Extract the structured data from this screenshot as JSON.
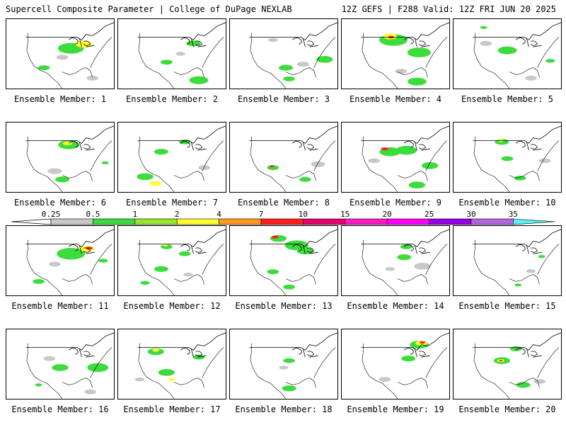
{
  "header": {
    "left": "Supercell Composite Parameter | College of DuPage NEXLAB",
    "right": "12Z GEFS | F288 Valid: 12Z FRI JUN 20 2025"
  },
  "colorbar": {
    "labels": [
      "0.25",
      "0.5",
      "1",
      "2",
      "4",
      "7",
      "10",
      "15",
      "20",
      "25",
      "30",
      "35"
    ],
    "colors": [
      "#c8c8c8",
      "#3ddc3d",
      "#96e632",
      "#ffff30",
      "#ff9a1e",
      "#ff1e1e",
      "#e6006e",
      "#ff19c8",
      "#ff00ff",
      "#9600e6",
      "#b464dc",
      "#5ef0f0"
    ]
  },
  "members": [
    {
      "label": "Ensemble Member: 1",
      "blobs": [
        [
          0.6,
          0.42,
          0.22,
          "g"
        ],
        [
          0.72,
          0.36,
          0.14,
          "y"
        ],
        [
          0.35,
          0.7,
          0.1,
          "g"
        ],
        [
          0.8,
          0.85,
          0.1,
          "s"
        ],
        [
          0.52,
          0.55,
          0.1,
          "s"
        ]
      ]
    },
    {
      "label": "Ensemble Member: 2",
      "blobs": [
        [
          0.7,
          0.35,
          0.12,
          "g"
        ],
        [
          0.45,
          0.62,
          0.1,
          "g"
        ],
        [
          0.75,
          0.88,
          0.16,
          "g"
        ],
        [
          0.58,
          0.5,
          0.08,
          "s"
        ]
      ]
    },
    {
      "label": "Ensemble Member: 3",
      "blobs": [
        [
          0.88,
          0.58,
          0.14,
          "g"
        ],
        [
          0.52,
          0.7,
          0.12,
          "g"
        ],
        [
          0.55,
          0.86,
          0.1,
          "g"
        ],
        [
          0.4,
          0.3,
          0.08,
          "s"
        ],
        [
          0.68,
          0.65,
          0.1,
          "s"
        ]
      ]
    },
    {
      "label": "Ensemble Member: 4",
      "blobs": [
        [
          0.48,
          0.3,
          0.24,
          "g"
        ],
        [
          0.45,
          0.25,
          0.12,
          "y"
        ],
        [
          0.46,
          0.26,
          0.05,
          "r"
        ],
        [
          0.72,
          0.48,
          0.2,
          "g"
        ],
        [
          0.7,
          0.9,
          0.16,
          "g"
        ],
        [
          0.55,
          0.75,
          0.1,
          "s"
        ]
      ]
    },
    {
      "label": "Ensemble Member: 5",
      "blobs": [
        [
          0.5,
          0.45,
          0.16,
          "g"
        ],
        [
          0.9,
          0.6,
          0.08,
          "g"
        ],
        [
          0.3,
          0.35,
          0.1,
          "s"
        ],
        [
          0.72,
          0.85,
          0.1,
          "s"
        ],
        [
          0.28,
          0.12,
          0.06,
          "g"
        ]
      ]
    },
    {
      "label": "Ensemble Member: 6",
      "blobs": [
        [
          0.58,
          0.32,
          0.18,
          "g"
        ],
        [
          0.57,
          0.3,
          0.08,
          "y"
        ],
        [
          0.92,
          0.58,
          0.06,
          "g"
        ],
        [
          0.52,
          0.82,
          0.12,
          "g"
        ],
        [
          0.45,
          0.7,
          0.12,
          "s"
        ]
      ]
    },
    {
      "label": "Ensemble Member: 7",
      "blobs": [
        [
          0.4,
          0.42,
          0.12,
          "g"
        ],
        [
          0.62,
          0.28,
          0.1,
          "g"
        ],
        [
          0.25,
          0.78,
          0.14,
          "g"
        ],
        [
          0.35,
          0.88,
          0.1,
          "y"
        ],
        [
          0.8,
          0.65,
          0.1,
          "s"
        ]
      ]
    },
    {
      "label": "Ensemble Member: 8",
      "blobs": [
        [
          0.4,
          0.65,
          0.1,
          "g"
        ],
        [
          0.39,
          0.63,
          0.04,
          "r"
        ],
        [
          0.82,
          0.6,
          0.12,
          "s"
        ],
        [
          0.7,
          0.82,
          0.1,
          "g"
        ]
      ]
    },
    {
      "label": "Ensemble Member: 9",
      "blobs": [
        [
          0.45,
          0.42,
          0.18,
          "g"
        ],
        [
          0.4,
          0.38,
          0.06,
          "r"
        ],
        [
          0.6,
          0.4,
          0.18,
          "g"
        ],
        [
          0.82,
          0.62,
          0.14,
          "g"
        ],
        [
          0.7,
          0.9,
          0.14,
          "g"
        ],
        [
          0.3,
          0.55,
          0.1,
          "s"
        ]
      ]
    },
    {
      "label": "Ensemble Member: 10",
      "blobs": [
        [
          0.45,
          0.28,
          0.12,
          "g"
        ],
        [
          0.44,
          0.26,
          0.05,
          "y"
        ],
        [
          0.5,
          0.52,
          0.1,
          "g"
        ],
        [
          0.62,
          0.8,
          0.1,
          "g"
        ],
        [
          0.85,
          0.55,
          0.1,
          "s"
        ]
      ]
    },
    {
      "label": "Ensemble Member: 11",
      "blobs": [
        [
          0.6,
          0.4,
          0.24,
          "g"
        ],
        [
          0.75,
          0.33,
          0.12,
          "y"
        ],
        [
          0.77,
          0.32,
          0.06,
          "r"
        ],
        [
          0.9,
          0.5,
          0.08,
          "g"
        ],
        [
          0.3,
          0.8,
          0.1,
          "g"
        ],
        [
          0.45,
          0.55,
          0.1,
          "s"
        ]
      ]
    },
    {
      "label": "Ensemble Member: 12",
      "blobs": [
        [
          0.45,
          0.3,
          0.1,
          "g"
        ],
        [
          0.44,
          0.28,
          0.04,
          "y"
        ],
        [
          0.62,
          0.4,
          0.1,
          "g"
        ],
        [
          0.4,
          0.62,
          0.12,
          "g"
        ],
        [
          0.25,
          0.82,
          0.08,
          "g"
        ],
        [
          0.65,
          0.7,
          0.08,
          "s"
        ]
      ]
    },
    {
      "label": "Ensemble Member: 13",
      "blobs": [
        [
          0.45,
          0.18,
          0.14,
          "g"
        ],
        [
          0.42,
          0.16,
          0.06,
          "r"
        ],
        [
          0.62,
          0.28,
          0.2,
          "g"
        ],
        [
          0.7,
          0.36,
          0.14,
          "g"
        ],
        [
          0.4,
          0.66,
          0.1,
          "g"
        ],
        [
          0.55,
          0.88,
          0.1,
          "g"
        ]
      ]
    },
    {
      "label": "Ensemble Member: 14",
      "blobs": [
        [
          0.6,
          0.3,
          0.1,
          "g"
        ],
        [
          0.58,
          0.45,
          0.12,
          "g"
        ],
        [
          0.75,
          0.58,
          0.14,
          "s"
        ],
        [
          0.45,
          0.62,
          0.08,
          "s"
        ]
      ]
    },
    {
      "label": "Ensemble Member: 15",
      "blobs": [
        [
          0.82,
          0.44,
          0.06,
          "g"
        ],
        [
          0.72,
          0.65,
          0.08,
          "s"
        ],
        [
          0.6,
          0.85,
          0.06,
          "g"
        ]
      ]
    },
    {
      "label": "Ensemble Member: 16",
      "blobs": [
        [
          0.5,
          0.55,
          0.14,
          "g"
        ],
        [
          0.85,
          0.55,
          0.18,
          "g"
        ],
        [
          0.4,
          0.42,
          0.1,
          "s"
        ],
        [
          0.3,
          0.8,
          0.06,
          "g"
        ],
        [
          0.78,
          0.9,
          0.1,
          "s"
        ]
      ]
    },
    {
      "label": "Ensemble Member: 17",
      "blobs": [
        [
          0.35,
          0.32,
          0.14,
          "g"
        ],
        [
          0.35,
          0.3,
          0.06,
          "y"
        ],
        [
          0.45,
          0.62,
          0.14,
          "g"
        ],
        [
          0.5,
          0.72,
          0.06,
          "y"
        ],
        [
          0.75,
          0.4,
          0.1,
          "g"
        ],
        [
          0.2,
          0.72,
          0.08,
          "s"
        ]
      ]
    },
    {
      "label": "Ensemble Member: 18",
      "blobs": [
        [
          0.55,
          0.45,
          0.1,
          "g"
        ],
        [
          0.5,
          0.55,
          0.08,
          "s"
        ],
        [
          0.55,
          0.85,
          0.12,
          "g"
        ]
      ]
    },
    {
      "label": "Ensemble Member: 19",
      "blobs": [
        [
          0.72,
          0.22,
          0.16,
          "g"
        ],
        [
          0.74,
          0.2,
          0.1,
          "y"
        ],
        [
          0.75,
          0.19,
          0.05,
          "r"
        ],
        [
          0.62,
          0.42,
          0.12,
          "g"
        ],
        [
          0.4,
          0.72,
          0.1,
          "s"
        ]
      ]
    },
    {
      "label": "Ensemble Member: 20",
      "blobs": [
        [
          0.45,
          0.45,
          0.14,
          "g"
        ],
        [
          0.44,
          0.45,
          0.06,
          "y"
        ],
        [
          0.44,
          0.45,
          0.03,
          "r"
        ],
        [
          0.58,
          0.28,
          0.1,
          "g"
        ],
        [
          0.65,
          0.8,
          0.12,
          "g"
        ],
        [
          0.8,
          0.75,
          0.1,
          "s"
        ]
      ]
    }
  ]
}
